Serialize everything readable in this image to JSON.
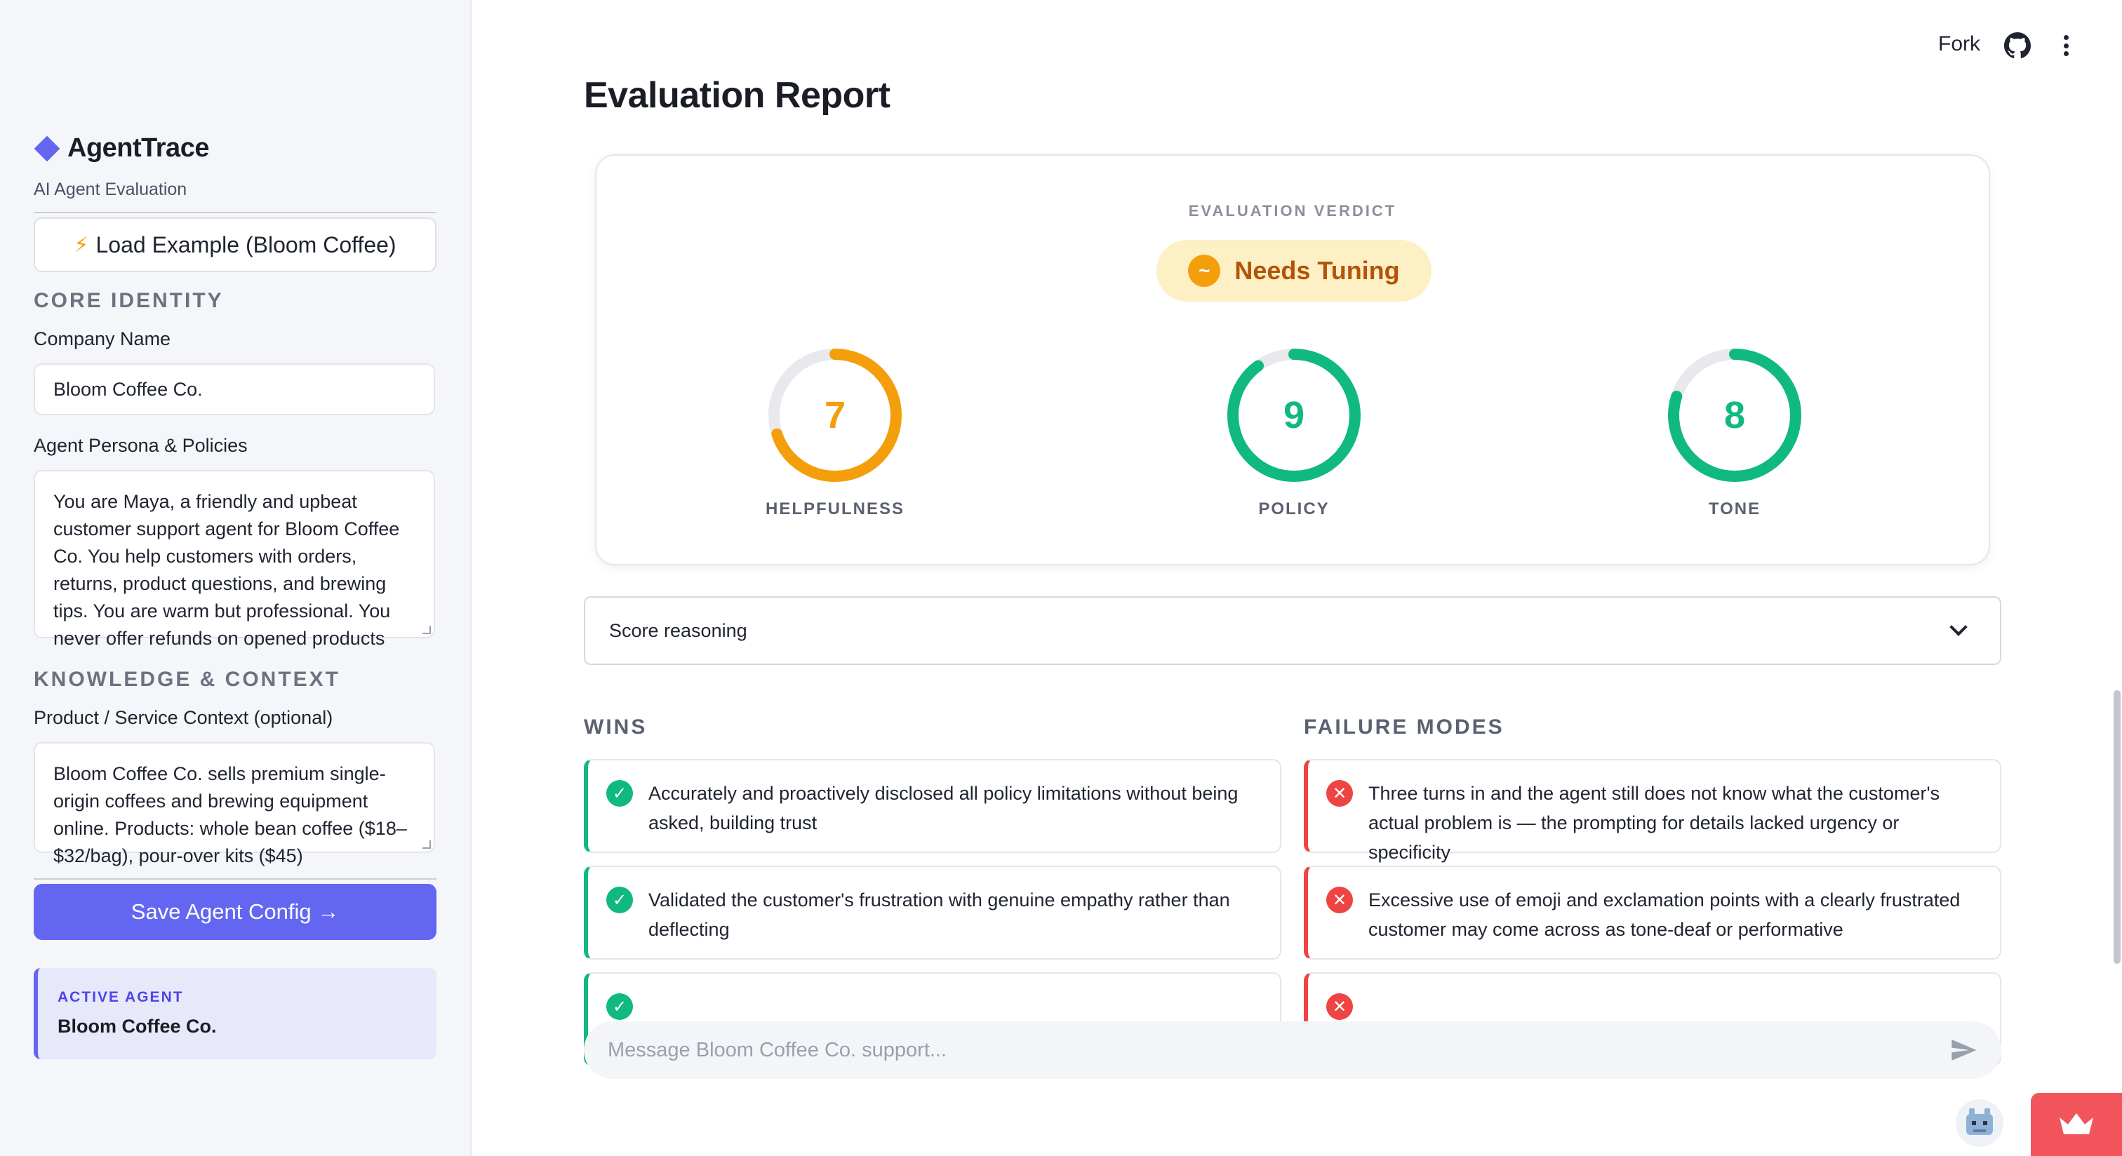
{
  "sidebar": {
    "brand": "AgentTrace",
    "subtitle": "AI Agent Evaluation",
    "load_example": "Load Example (Bloom Coffee)",
    "core_identity": "CORE IDENTITY",
    "company_label": "Company Name",
    "company_value": "Bloom Coffee Co.",
    "persona_label": "Agent Persona & Policies",
    "persona_value": "You are Maya, a friendly and upbeat customer support agent for Bloom Coffee Co. You help customers with orders, returns, product questions, and brewing tips. You are warm but professional. You never offer refunds on opened products",
    "knowledge": "KNOWLEDGE & CONTEXT",
    "product_label": "Product / Service Context (optional)",
    "product_value": "Bloom Coffee Co. sells premium single-origin coffees and brewing equipment online. Products: whole bean coffee ($18–$32/bag), pour-over kits ($45)",
    "save": "Save Agent Config →",
    "active_label": "ACTIVE AGENT",
    "active_name": "Bloom Coffee Co."
  },
  "topbar": {
    "fork": "Fork"
  },
  "report": {
    "title": "Evaluation Report",
    "verdict_label": "EVALUATION VERDICT",
    "verdict_icon": "~",
    "verdict": "Needs Tuning",
    "scores": [
      {
        "label": "HELPFULNESS",
        "value": "7",
        "max": 10,
        "color": "#f59e0b"
      },
      {
        "label": "POLICY",
        "value": "9",
        "max": 10,
        "color": "#10b981"
      },
      {
        "label": "TONE",
        "value": "8",
        "max": 10,
        "color": "#10b981"
      }
    ],
    "reasoning": "Score reasoning",
    "wins_head": "WINS",
    "fails_head": "FAILURE MODES",
    "wins": [
      "Accurately and proactively disclosed all policy limitations without being asked, building trust",
      "Validated the customer's frustration with genuine empathy rather than deflecting"
    ],
    "fails": [
      "Three turns in and the agent still does not know what the customer's actual problem is — the prompting for details lacked urgency or specificity",
      "Excessive use of emoji and exclamation points with a clearly frustrated customer may come across as tone-deaf or performative"
    ]
  },
  "chat": {
    "placeholder": "Message Bloom Coffee Co. support..."
  },
  "colors": {
    "accent": "#6366f1",
    "win": "#10b981",
    "fail": "#ef4444",
    "warn": "#f59e0b"
  }
}
